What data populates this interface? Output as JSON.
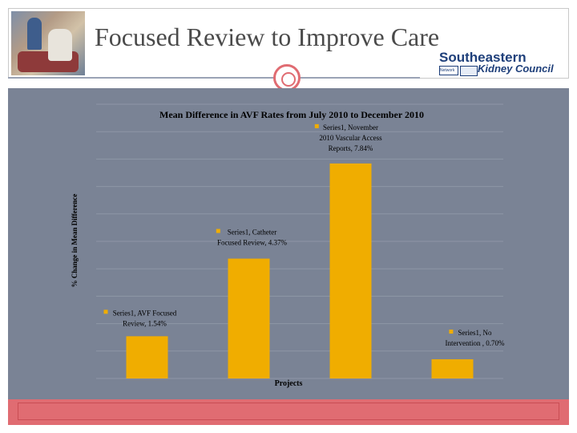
{
  "slide": {
    "title": "Focused Review to Improve Care",
    "logo_line1": "Southeastern",
    "logo_line2": "Kidney Council",
    "logo_small": "Network 6"
  },
  "colors": {
    "panel_bg": "#7a8395",
    "bar": "#f0ad00",
    "gridline": "#8e96a6",
    "accent": "#e06c72",
    "title": "#4a4a4a"
  },
  "chart_data": {
    "type": "bar",
    "title": "Mean Difference in AVF Rates from July 2010 to December 2010",
    "xlabel": "Projects",
    "ylabel": "% Change in Mean Difference",
    "categories": [
      "AVF Focused Review",
      "Catheter Focused Review",
      "November 2010 Vascular Access Reports",
      "No Intervention"
    ],
    "series": [
      {
        "name": "Series1",
        "values": [
          1.54,
          4.37,
          7.84,
          0.7
        ]
      }
    ],
    "ylim": [
      0,
      10
    ],
    "grid": true,
    "data_labels": [
      [
        "Series1, AVF Focused",
        "Review, 1.54%"
      ],
      [
        "Series1, Catheter",
        "Focused Review, 4.37%"
      ],
      [
        "Series1, November",
        "2010 Vascular Access",
        "Reports, 7.84%"
      ],
      [
        "Series1, No",
        "Intervention , 0.70%"
      ]
    ]
  }
}
